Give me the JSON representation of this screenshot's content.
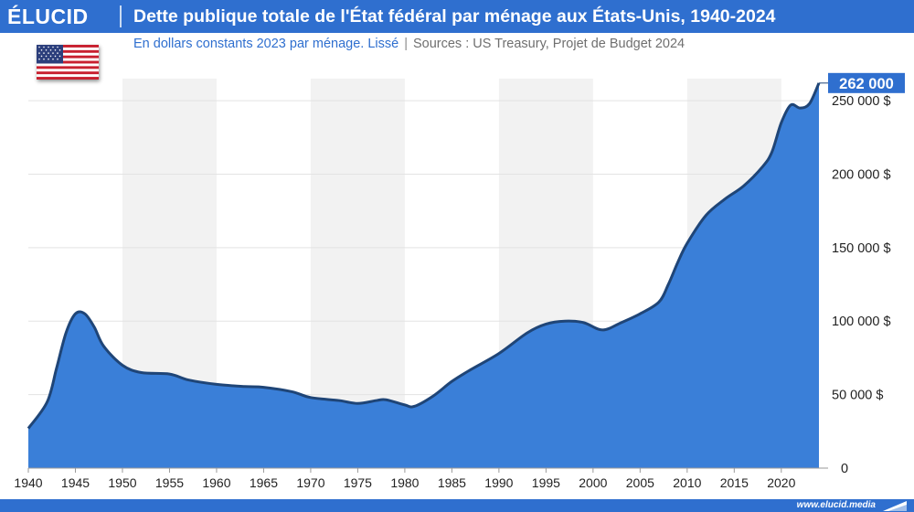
{
  "brand": {
    "logo": "ÉLUCID",
    "website": "www.elucid.media"
  },
  "header": {
    "title": "Dette publique totale de l'État fédéral par ménage aux États-Unis, 1940-2024",
    "subtitle_main": "En dollars constants 2023 par ménage. Lissé",
    "subtitle_separator": "|",
    "subtitle_sources": "Sources : US Treasury, Projet de Budget 2024"
  },
  "flag_icon": "us-flag-icon",
  "colors": {
    "brand_blue": "#2f6fcf",
    "area_fill": "#3a7fd8",
    "line": "#1f4577",
    "band": "#f2f2f2"
  },
  "chart_data": {
    "type": "area",
    "title": "Dette publique totale de l'État fédéral par ménage aux États-Unis, 1940-2024",
    "subtitle": "En dollars constants 2023 par ménage. Lissé",
    "xlabel": "",
    "ylabel": "",
    "xlim": [
      1940,
      2024
    ],
    "ylim": [
      0,
      265000
    ],
    "y_axis_side": "right",
    "x_ticks": [
      1940,
      1945,
      1950,
      1955,
      1960,
      1965,
      1970,
      1975,
      1980,
      1985,
      1990,
      1995,
      2000,
      2005,
      2010,
      2015,
      2020
    ],
    "x_tick_labels": [
      "1940",
      "1945",
      "1950",
      "1955",
      "1960",
      "1965",
      "1970",
      "1975",
      "1980",
      "1985",
      "1990",
      "1995",
      "2000",
      "2005",
      "2010",
      "2015",
      "2020"
    ],
    "y_ticks": [
      0,
      50000,
      100000,
      150000,
      200000,
      250000
    ],
    "y_tick_labels": [
      "0",
      "50 000 $",
      "100 000 $",
      "150 000 $",
      "200 000 $",
      "250 000 $"
    ],
    "grid": true,
    "background_bands": "alternating decades",
    "end_label": "262 000",
    "series": [
      {
        "x": [
          1940,
          1942,
          1943,
          1944,
          1945,
          1946,
          1947,
          1948,
          1950,
          1952,
          1955,
          1957,
          1960,
          1963,
          1965,
          1968,
          1970,
          1973,
          1975,
          1977,
          1978,
          1980,
          1981,
          1983,
          1985,
          1987,
          1990,
          1993,
          1995,
          1997,
          1999,
          2001,
          2003,
          2005,
          2007,
          2008,
          2009,
          2010,
          2012,
          2014,
          2016,
          2018,
          2019,
          2020,
          2021,
          2022,
          2023,
          2024
        ],
        "values": [
          27000,
          45000,
          68000,
          92000,
          105000,
          105000,
          96000,
          83000,
          70000,
          65000,
          64000,
          60000,
          57000,
          55500,
          55000,
          52000,
          48000,
          46000,
          44000,
          46000,
          46500,
          43000,
          42000,
          49000,
          59000,
          67000,
          78000,
          92000,
          98000,
          100000,
          99000,
          94000,
          99000,
          105000,
          113000,
          125000,
          140000,
          153000,
          172000,
          183000,
          192000,
          205000,
          215000,
          235000,
          247000,
          245000,
          248000,
          262000
        ]
      }
    ]
  }
}
